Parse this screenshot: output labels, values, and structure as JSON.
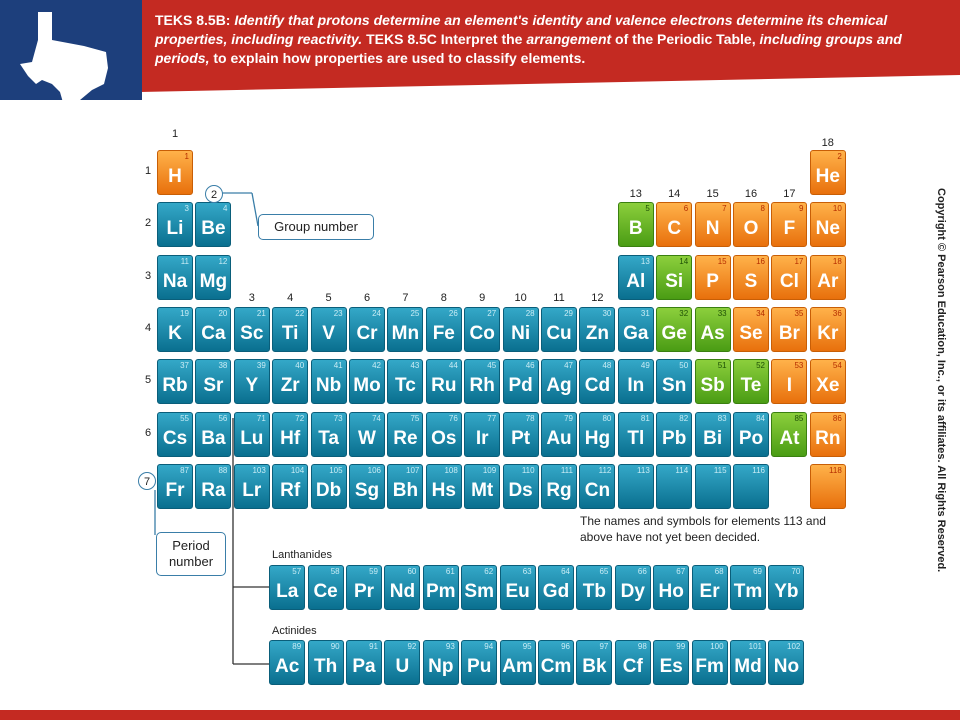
{
  "header": {
    "text_runs": [
      {
        "t": "TEKS 8.5B: ",
        "i": false
      },
      {
        "t": "Identify that protons determine an element's identity and valence electrons determine its chemical properties, including reactivity.",
        "i": true
      },
      {
        "t": " TEKS 8.5C  Interpret the ",
        "i": false
      },
      {
        "t": "arrangement",
        "i": true
      },
      {
        "t": " of the Periodic Table, ",
        "i": false
      },
      {
        "t": "including groups and periods,",
        "i": true
      },
      {
        "t": " to explain how properties are used to classify elements.",
        "i": false
      }
    ],
    "colors": {
      "blue": "#1d3f7c",
      "red": "#c42a22"
    },
    "logo_icon": "texas-map-icon"
  },
  "copyright": "Copyright © Pearson Education, Inc., or its affiliates. All Rights Reserved.",
  "group_labels": [
    "1",
    "2",
    "3",
    "4",
    "5",
    "6",
    "7",
    "8",
    "9",
    "10",
    "11",
    "12",
    "13",
    "14",
    "15",
    "16",
    "17",
    "18"
  ],
  "period_labels": [
    "1",
    "2",
    "3",
    "4",
    "5",
    "6",
    "7"
  ],
  "callouts": {
    "group_number": {
      "circle": "2",
      "label": "Group number"
    },
    "period_number": {
      "circle": "7",
      "label_lines": [
        "Period",
        "number"
      ]
    }
  },
  "note": "The names and symbols for elements 113 and above have not yet been decided.",
  "lanthanides_label": "Lanthanides",
  "actinides_label": "Actinides",
  "element_colors": {
    "metal": "#1a8db0",
    "nonmetal": "#f5921e",
    "metalloid": "#6cb52a"
  },
  "elements": [
    {
      "n": 1,
      "s": "H",
      "g": 1,
      "p": 1,
      "c": "nonmetal"
    },
    {
      "n": 2,
      "s": "He",
      "g": 18,
      "p": 1,
      "c": "nonmetal"
    },
    {
      "n": 3,
      "s": "Li",
      "g": 1,
      "p": 2,
      "c": "metal"
    },
    {
      "n": 4,
      "s": "Be",
      "g": 2,
      "p": 2,
      "c": "metal"
    },
    {
      "n": 5,
      "s": "B",
      "g": 13,
      "p": 2,
      "c": "metalloid"
    },
    {
      "n": 6,
      "s": "C",
      "g": 14,
      "p": 2,
      "c": "nonmetal"
    },
    {
      "n": 7,
      "s": "N",
      "g": 15,
      "p": 2,
      "c": "nonmetal"
    },
    {
      "n": 8,
      "s": "O",
      "g": 16,
      "p": 2,
      "c": "nonmetal"
    },
    {
      "n": 9,
      "s": "F",
      "g": 17,
      "p": 2,
      "c": "nonmetal"
    },
    {
      "n": 10,
      "s": "Ne",
      "g": 18,
      "p": 2,
      "c": "nonmetal"
    },
    {
      "n": 11,
      "s": "Na",
      "g": 1,
      "p": 3,
      "c": "metal"
    },
    {
      "n": 12,
      "s": "Mg",
      "g": 2,
      "p": 3,
      "c": "metal"
    },
    {
      "n": 13,
      "s": "Al",
      "g": 13,
      "p": 3,
      "c": "metal"
    },
    {
      "n": 14,
      "s": "Si",
      "g": 14,
      "p": 3,
      "c": "metalloid"
    },
    {
      "n": 15,
      "s": "P",
      "g": 15,
      "p": 3,
      "c": "nonmetal"
    },
    {
      "n": 16,
      "s": "S",
      "g": 16,
      "p": 3,
      "c": "nonmetal"
    },
    {
      "n": 17,
      "s": "Cl",
      "g": 17,
      "p": 3,
      "c": "nonmetal"
    },
    {
      "n": 18,
      "s": "Ar",
      "g": 18,
      "p": 3,
      "c": "nonmetal"
    },
    {
      "n": 19,
      "s": "K",
      "g": 1,
      "p": 4,
      "c": "metal"
    },
    {
      "n": 20,
      "s": "Ca",
      "g": 2,
      "p": 4,
      "c": "metal"
    },
    {
      "n": 21,
      "s": "Sc",
      "g": 3,
      "p": 4,
      "c": "metal"
    },
    {
      "n": 22,
      "s": "Ti",
      "g": 4,
      "p": 4,
      "c": "metal"
    },
    {
      "n": 23,
      "s": "V",
      "g": 5,
      "p": 4,
      "c": "metal"
    },
    {
      "n": 24,
      "s": "Cr",
      "g": 6,
      "p": 4,
      "c": "metal"
    },
    {
      "n": 25,
      "s": "Mn",
      "g": 7,
      "p": 4,
      "c": "metal"
    },
    {
      "n": 26,
      "s": "Fe",
      "g": 8,
      "p": 4,
      "c": "metal"
    },
    {
      "n": 27,
      "s": "Co",
      "g": 9,
      "p": 4,
      "c": "metal"
    },
    {
      "n": 28,
      "s": "Ni",
      "g": 10,
      "p": 4,
      "c": "metal"
    },
    {
      "n": 29,
      "s": "Cu",
      "g": 11,
      "p": 4,
      "c": "metal"
    },
    {
      "n": 30,
      "s": "Zn",
      "g": 12,
      "p": 4,
      "c": "metal"
    },
    {
      "n": 31,
      "s": "Ga",
      "g": 13,
      "p": 4,
      "c": "metal"
    },
    {
      "n": 32,
      "s": "Ge",
      "g": 14,
      "p": 4,
      "c": "metalloid"
    },
    {
      "n": 33,
      "s": "As",
      "g": 15,
      "p": 4,
      "c": "metalloid"
    },
    {
      "n": 34,
      "s": "Se",
      "g": 16,
      "p": 4,
      "c": "nonmetal"
    },
    {
      "n": 35,
      "s": "Br",
      "g": 17,
      "p": 4,
      "c": "nonmetal"
    },
    {
      "n": 36,
      "s": "Kr",
      "g": 18,
      "p": 4,
      "c": "nonmetal"
    },
    {
      "n": 37,
      "s": "Rb",
      "g": 1,
      "p": 5,
      "c": "metal"
    },
    {
      "n": 38,
      "s": "Sr",
      "g": 2,
      "p": 5,
      "c": "metal"
    },
    {
      "n": 39,
      "s": "Y",
      "g": 3,
      "p": 5,
      "c": "metal"
    },
    {
      "n": 40,
      "s": "Zr",
      "g": 4,
      "p": 5,
      "c": "metal"
    },
    {
      "n": 41,
      "s": "Nb",
      "g": 5,
      "p": 5,
      "c": "metal"
    },
    {
      "n": 42,
      "s": "Mo",
      "g": 6,
      "p": 5,
      "c": "metal"
    },
    {
      "n": 43,
      "s": "Tc",
      "g": 7,
      "p": 5,
      "c": "metal"
    },
    {
      "n": 44,
      "s": "Ru",
      "g": 8,
      "p": 5,
      "c": "metal"
    },
    {
      "n": 45,
      "s": "Rh",
      "g": 9,
      "p": 5,
      "c": "metal"
    },
    {
      "n": 46,
      "s": "Pd",
      "g": 10,
      "p": 5,
      "c": "metal"
    },
    {
      "n": 47,
      "s": "Ag",
      "g": 11,
      "p": 5,
      "c": "metal"
    },
    {
      "n": 48,
      "s": "Cd",
      "g": 12,
      "p": 5,
      "c": "metal"
    },
    {
      "n": 49,
      "s": "In",
      "g": 13,
      "p": 5,
      "c": "metal"
    },
    {
      "n": 50,
      "s": "Sn",
      "g": 14,
      "p": 5,
      "c": "metal"
    },
    {
      "n": 51,
      "s": "Sb",
      "g": 15,
      "p": 5,
      "c": "metalloid"
    },
    {
      "n": 52,
      "s": "Te",
      "g": 16,
      "p": 5,
      "c": "metalloid"
    },
    {
      "n": 53,
      "s": "I",
      "g": 17,
      "p": 5,
      "c": "nonmetal"
    },
    {
      "n": 54,
      "s": "Xe",
      "g": 18,
      "p": 5,
      "c": "nonmetal"
    },
    {
      "n": 55,
      "s": "Cs",
      "g": 1,
      "p": 6,
      "c": "metal"
    },
    {
      "n": 56,
      "s": "Ba",
      "g": 2,
      "p": 6,
      "c": "metal"
    },
    {
      "n": 71,
      "s": "Lu",
      "g": 3,
      "p": 6,
      "c": "metal"
    },
    {
      "n": 72,
      "s": "Hf",
      "g": 4,
      "p": 6,
      "c": "metal"
    },
    {
      "n": 73,
      "s": "Ta",
      "g": 5,
      "p": 6,
      "c": "metal"
    },
    {
      "n": 74,
      "s": "W",
      "g": 6,
      "p": 6,
      "c": "metal"
    },
    {
      "n": 75,
      "s": "Re",
      "g": 7,
      "p": 6,
      "c": "metal"
    },
    {
      "n": 76,
      "s": "Os",
      "g": 8,
      "p": 6,
      "c": "metal"
    },
    {
      "n": 77,
      "s": "Ir",
      "g": 9,
      "p": 6,
      "c": "metal"
    },
    {
      "n": 78,
      "s": "Pt",
      "g": 10,
      "p": 6,
      "c": "metal"
    },
    {
      "n": 79,
      "s": "Au",
      "g": 11,
      "p": 6,
      "c": "metal"
    },
    {
      "n": 80,
      "s": "Hg",
      "g": 12,
      "p": 6,
      "c": "metal"
    },
    {
      "n": 81,
      "s": "Tl",
      "g": 13,
      "p": 6,
      "c": "metal"
    },
    {
      "n": 82,
      "s": "Pb",
      "g": 14,
      "p": 6,
      "c": "metal"
    },
    {
      "n": 83,
      "s": "Bi",
      "g": 15,
      "p": 6,
      "c": "metal"
    },
    {
      "n": 84,
      "s": "Po",
      "g": 16,
      "p": 6,
      "c": "metal"
    },
    {
      "n": 85,
      "s": "At",
      "g": 17,
      "p": 6,
      "c": "metalloid"
    },
    {
      "n": 86,
      "s": "Rn",
      "g": 18,
      "p": 6,
      "c": "nonmetal"
    },
    {
      "n": 87,
      "s": "Fr",
      "g": 1,
      "p": 7,
      "c": "metal"
    },
    {
      "n": 88,
      "s": "Ra",
      "g": 2,
      "p": 7,
      "c": "metal"
    },
    {
      "n": 103,
      "s": "Lr",
      "g": 3,
      "p": 7,
      "c": "metal"
    },
    {
      "n": 104,
      "s": "Rf",
      "g": 4,
      "p": 7,
      "c": "metal"
    },
    {
      "n": 105,
      "s": "Db",
      "g": 5,
      "p": 7,
      "c": "metal"
    },
    {
      "n": 106,
      "s": "Sg",
      "g": 6,
      "p": 7,
      "c": "metal"
    },
    {
      "n": 107,
      "s": "Bh",
      "g": 7,
      "p": 7,
      "c": "metal"
    },
    {
      "n": 108,
      "s": "Hs",
      "g": 8,
      "p": 7,
      "c": "metal"
    },
    {
      "n": 109,
      "s": "Mt",
      "g": 9,
      "p": 7,
      "c": "metal"
    },
    {
      "n": 110,
      "s": "Ds",
      "g": 10,
      "p": 7,
      "c": "metal"
    },
    {
      "n": 111,
      "s": "Rg",
      "g": 11,
      "p": 7,
      "c": "metal"
    },
    {
      "n": 112,
      "s": "Cn",
      "g": 12,
      "p": 7,
      "c": "metal"
    },
    {
      "n": 113,
      "s": "",
      "g": 13,
      "p": 7,
      "c": "metal"
    },
    {
      "n": 114,
      "s": "",
      "g": 14,
      "p": 7,
      "c": "metal"
    },
    {
      "n": 115,
      "s": "",
      "g": 15,
      "p": 7,
      "c": "metal"
    },
    {
      "n": 116,
      "s": "",
      "g": 16,
      "p": 7,
      "c": "metal"
    },
    {
      "n": 118,
      "s": "",
      "g": 18,
      "p": 7,
      "c": "nonmetal"
    }
  ],
  "lanthanides": [
    {
      "n": 57,
      "s": "La"
    },
    {
      "n": 58,
      "s": "Ce"
    },
    {
      "n": 59,
      "s": "Pr"
    },
    {
      "n": 60,
      "s": "Nd"
    },
    {
      "n": 61,
      "s": "Pm"
    },
    {
      "n": 62,
      "s": "Sm"
    },
    {
      "n": 63,
      "s": "Eu"
    },
    {
      "n": 64,
      "s": "Gd"
    },
    {
      "n": 65,
      "s": "Tb"
    },
    {
      "n": 66,
      "s": "Dy"
    },
    {
      "n": 67,
      "s": "Ho"
    },
    {
      "n": 68,
      "s": "Er"
    },
    {
      "n": 69,
      "s": "Tm"
    },
    {
      "n": 70,
      "s": "Yb"
    }
  ],
  "actinides": [
    {
      "n": 89,
      "s": "Ac"
    },
    {
      "n": 90,
      "s": "Th"
    },
    {
      "n": 91,
      "s": "Pa"
    },
    {
      "n": 92,
      "s": "U"
    },
    {
      "n": 93,
      "s": "Np"
    },
    {
      "n": 94,
      "s": "Pu"
    },
    {
      "n": 95,
      "s": "Am"
    },
    {
      "n": 96,
      "s": "Cm"
    },
    {
      "n": 97,
      "s": "Bk"
    },
    {
      "n": 98,
      "s": "Cf"
    },
    {
      "n": 99,
      "s": "Es"
    },
    {
      "n": 100,
      "s": "Fm"
    },
    {
      "n": 101,
      "s": "Md"
    },
    {
      "n": 102,
      "s": "No"
    }
  ]
}
